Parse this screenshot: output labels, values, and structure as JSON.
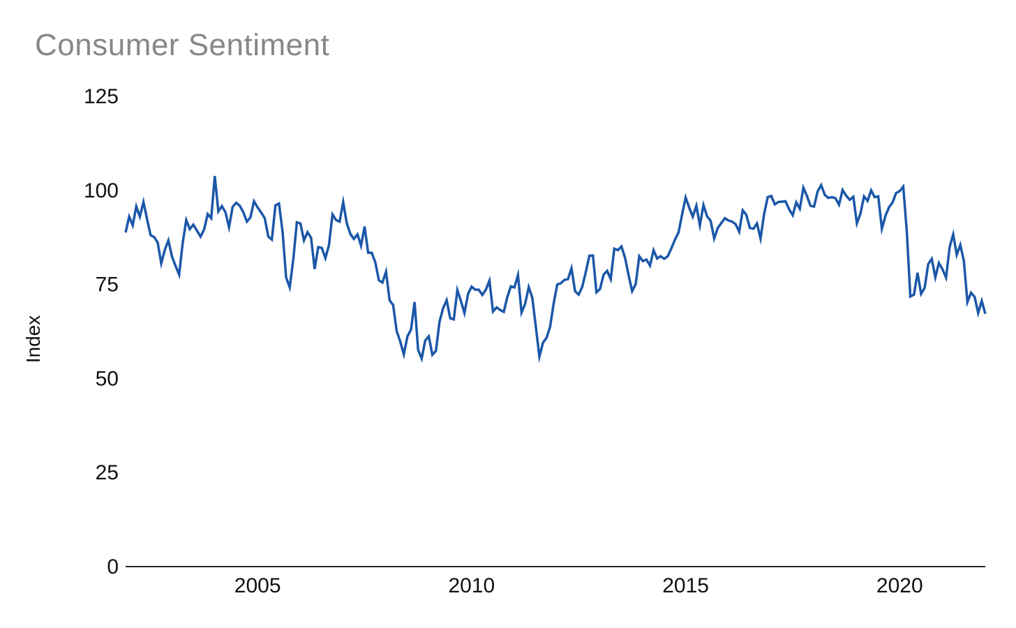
{
  "page": {
    "background_color": "#ffffff"
  },
  "chart_data": {
    "type": "line",
    "title": "Consumer Sentiment",
    "subtitle": "",
    "xlabel": "",
    "ylabel": "Index",
    "series_name": "Consumer Sentiment Index",
    "frequency": "monthly",
    "start": "2001-12",
    "end": "2022-01",
    "ylim": [
      0,
      125
    ],
    "yticks": [
      0,
      25,
      50,
      75,
      100,
      125
    ],
    "xticks": [
      {
        "label": "2005",
        "month_index": 37
      },
      {
        "label": "2010",
        "month_index": 97
      },
      {
        "label": "2015",
        "month_index": 157
      },
      {
        "label": "2020",
        "month_index": 217
      }
    ],
    "grid": false,
    "legend": "none",
    "line_color": "#1b57a8",
    "axis_color": "#222222",
    "tick_label_color": "#111111",
    "title_color": "#878787",
    "values": [
      88.8,
      93.0,
      90.7,
      95.7,
      93.0,
      96.9,
      92.4,
      88.1,
      87.6,
      86.1,
      80.6,
      84.2,
      86.7,
      82.4,
      79.9,
      77.6,
      86.0,
      92.1,
      89.7,
      90.9,
      89.3,
      87.7,
      89.6,
      93.7,
      92.6,
      103.8,
      94.4,
      95.8,
      94.2,
      90.2,
      95.6,
      96.7,
      95.9,
      94.2,
      91.7,
      92.8,
      97.1,
      95.5,
      94.1,
      92.6,
      87.7,
      86.9,
      96.0,
      96.5,
      89.1,
      76.9,
      74.2,
      81.6,
      91.5,
      91.2,
      86.7,
      88.9,
      87.4,
      79.1,
      84.9,
      84.7,
      82.0,
      85.4,
      93.6,
      92.1,
      91.7,
      96.9,
      91.3,
      88.4,
      87.1,
      88.3,
      85.3,
      90.4,
      83.4,
      83.4,
      80.9,
      76.1,
      75.5,
      78.4,
      70.8,
      69.5,
      62.6,
      59.8,
      56.4,
      61.2,
      63.0,
      70.3,
      57.6,
      55.3,
      60.1,
      61.2,
      56.3,
      57.3,
      65.1,
      68.7,
      70.8,
      66.0,
      65.7,
      73.5,
      70.6,
      67.4,
      72.5,
      74.4,
      73.6,
      73.6,
      72.2,
      73.6,
      76.0,
      67.8,
      68.9,
      68.2,
      67.7,
      71.6,
      74.5,
      74.2,
      77.5,
      67.5,
      69.8,
      74.3,
      71.5,
      63.7,
      55.8,
      59.5,
      60.8,
      63.7,
      69.9,
      75.0,
      75.3,
      76.2,
      76.4,
      79.3,
      73.2,
      72.3,
      74.3,
      78.3,
      82.6,
      82.7,
      72.9,
      73.8,
      77.6,
      78.6,
      76.4,
      84.5,
      84.1,
      85.1,
      82.1,
      77.5,
      73.2,
      75.1,
      82.5,
      81.2,
      81.6,
      80.0,
      84.1,
      81.9,
      82.5,
      81.8,
      82.5,
      84.6,
      86.9,
      88.8,
      93.6,
      98.1,
      95.4,
      93.0,
      95.9,
      90.7,
      96.1,
      93.1,
      91.9,
      87.2,
      90.0,
      91.3,
      92.6,
      92.0,
      91.7,
      91.0,
      89.0,
      94.7,
      93.5,
      90.0,
      89.8,
      91.2,
      87.2,
      93.8,
      98.2,
      98.5,
      96.3,
      96.9,
      97.0,
      97.1,
      95.0,
      93.4,
      96.8,
      95.1,
      100.7,
      98.5,
      95.9,
      95.7,
      99.7,
      101.4,
      98.8,
      98.0,
      98.2,
      97.9,
      96.2,
      100.1,
      98.6,
      97.5,
      98.3,
      91.2,
      93.8,
      98.4,
      97.2,
      100.0,
      98.2,
      98.4,
      89.8,
      93.2,
      95.5,
      96.8,
      99.3,
      99.8,
      101.0,
      89.1,
      71.8,
      72.3,
      78.1,
      72.5,
      74.1,
      80.4,
      81.8,
      76.9,
      80.7,
      79.0,
      76.8,
      84.9,
      88.3,
      82.9,
      85.5,
      81.2,
      70.3,
      72.8,
      71.7,
      67.4,
      70.6,
      67.2
    ]
  }
}
